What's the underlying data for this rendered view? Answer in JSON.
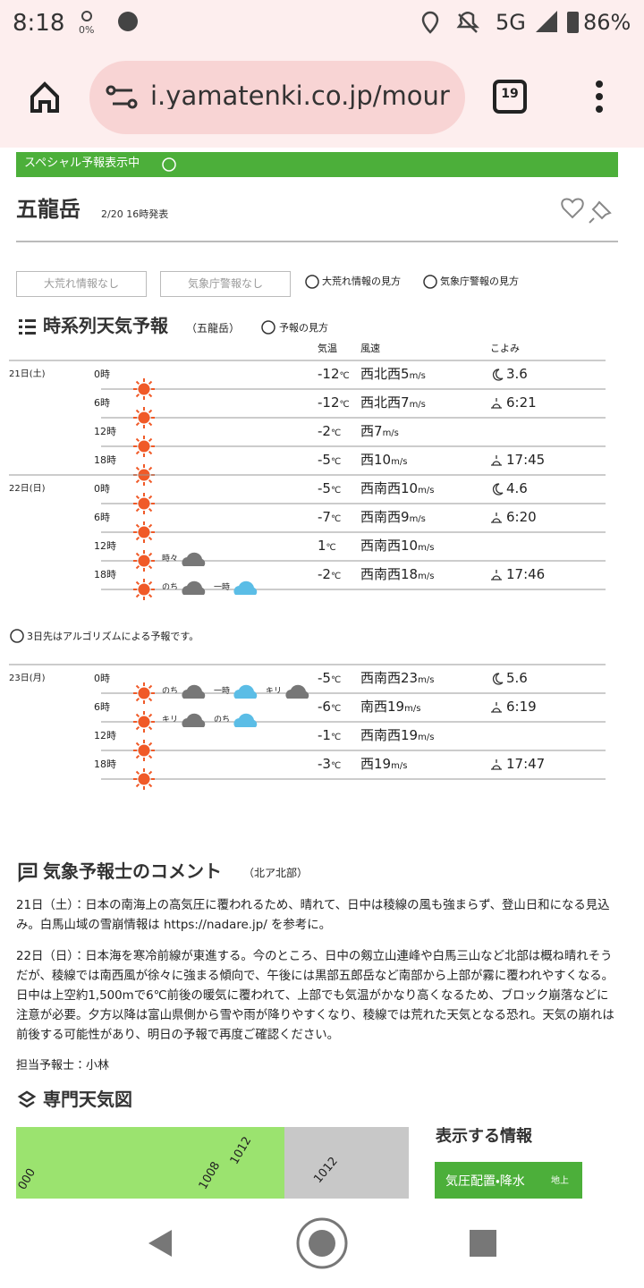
{
  "status_bar": {
    "time": "8:18",
    "data_saver": "0%",
    "network": "5G",
    "battery": "86%"
  },
  "browser": {
    "url": "i.yamatenki.co.jp/mour",
    "tab_count": "19"
  },
  "banner": "スペシャル予報表示中",
  "header": {
    "title": "五龍岳",
    "issued": "2/20 16時発表"
  },
  "alerts": {
    "buttons": [
      "大荒れ情報なし",
      "気象庁警報なし"
    ],
    "links": [
      "大荒れ情報の見方",
      "気象庁警報の見方"
    ]
  },
  "forecast": {
    "title": "時系列天気予報",
    "location": "（五龍岳）",
    "help": "予報の見方",
    "columns": [
      "気温",
      "風速",
      "こよみ"
    ],
    "temp_unit": "℃",
    "wind_unit": "m/s",
    "days": [
      {
        "label": "21日(土)",
        "rows": [
          {
            "hour": "0時",
            "temp": "-12",
            "wind_dir": "西北西",
            "wind_speed": "5",
            "almanac": "3.6",
            "notes": []
          },
          {
            "hour": "6時",
            "temp": "-12",
            "wind_dir": "西北西",
            "wind_speed": "7",
            "almanac": "6:21",
            "notes": []
          },
          {
            "hour": "12時",
            "temp": "-2",
            "wind_dir": "西",
            "wind_speed": "7",
            "almanac": null,
            "notes": []
          },
          {
            "hour": "18時",
            "temp": "-5",
            "wind_dir": "西",
            "wind_speed": "10",
            "almanac": "17:45",
            "notes": []
          }
        ]
      },
      {
        "label": "22日(日)",
        "rows": [
          {
            "hour": "0時",
            "temp": "-5",
            "wind_dir": "西南西",
            "wind_speed": "10",
            "almanac": "4.6",
            "notes": []
          },
          {
            "hour": "6時",
            "temp": "-7",
            "wind_dir": "西南西",
            "wind_speed": "9",
            "almanac": "6:20",
            "notes": []
          },
          {
            "hour": "12時",
            "temp": "1",
            "wind_dir": "西南西",
            "wind_speed": "10",
            "almanac": null,
            "notes": [
              "時々"
            ]
          },
          {
            "hour": "18時",
            "temp": "-2",
            "wind_dir": "西南西",
            "wind_speed": "18",
            "almanac": "17:46",
            "notes": [
              "のち",
              "一時"
            ]
          }
        ]
      },
      {
        "label": "23日(月)",
        "rows": [
          {
            "hour": "0時",
            "temp": "-5",
            "wind_dir": "西南西",
            "wind_speed": "23",
            "almanac": "5.6",
            "notes": [
              "のち",
              "一時",
              "キリ"
            ]
          },
          {
            "hour": "6時",
            "temp": "-6",
            "wind_dir": "南西",
            "wind_speed": "19",
            "almanac": "6:19",
            "notes": [
              "キリ",
              "のち"
            ]
          },
          {
            "hour": "12時",
            "temp": "-1",
            "wind_dir": "西南西",
            "wind_speed": "19",
            "almanac": null,
            "notes": []
          },
          {
            "hour": "18時",
            "temp": "-3",
            "wind_dir": "西",
            "wind_speed": "19",
            "almanac": "17:47",
            "notes": []
          }
        ]
      }
    ],
    "note": "3日先はアルゴリズムによる予報です。"
  },
  "comment": {
    "title": "気象予報士のコメント",
    "region": "（北ア北部）",
    "paragraphs": [
      "21日（土）：日本の南海上の高気圧に覆われるため、晴れて、日中は稜線の風も強まらず、登山日和になる見込み。白馬山域の雪崩情報は https://nadare.jp/ を参考に。",
      "22日（日）：日本海を寒冷前線が東進する。今のところ、日中の剱立山連峰や白馬三山など北部は概ね晴れそうだが、稜線では南西風が徐々に強まる傾向で、午後には黒部五郎岳など南部から上部が霧に覆われやすくなる。日中は上空約1,500mで6℃前後の暖気に覆われて、上部でも気温がかなり高くなるため、ブロック崩落などに注意が必要。夕方以降は富山県側から雪や雨が降りやすくなり、稜線では荒れた天気となる恐れ。天気の崩れは前後する可能性があり、明日の予報で再度ご確認ください。"
    ],
    "author": "担当予報士：小林"
  },
  "weather_map": {
    "title": "専門天気図",
    "map_labels": [
      "000",
      "1008",
      "1012",
      "1012"
    ],
    "side_title": "表示する情報",
    "button": "気圧配置・降水",
    "button_sub": "地上"
  }
}
